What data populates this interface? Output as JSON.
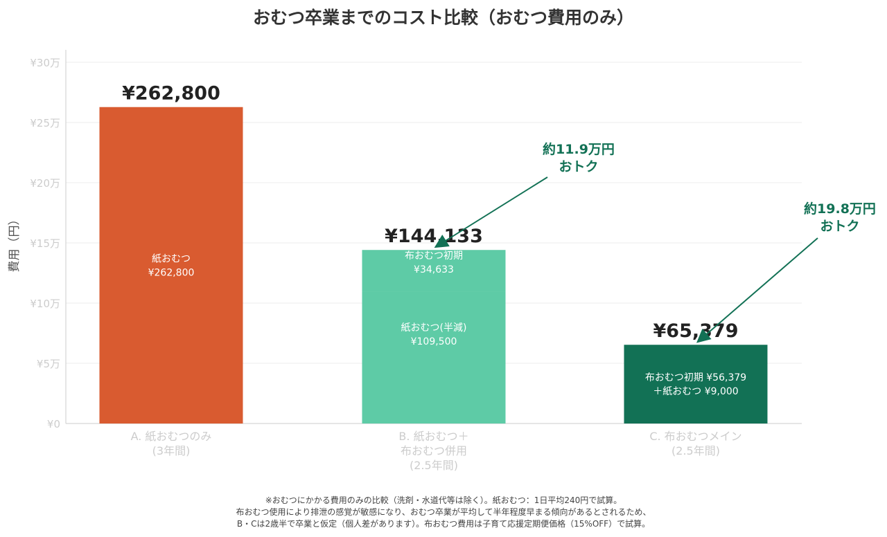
{
  "chart_data": {
    "type": "bar",
    "stacked": true,
    "title": "おむつ卒業までのコスト比較（おむつ費用のみ）",
    "ylabel": "費用（円）",
    "xlabel": "",
    "ylim": [
      0,
      300000
    ],
    "grid": true,
    "yticks": [
      0,
      50000,
      100000,
      150000,
      200000,
      250000,
      300000
    ],
    "ytick_labels": [
      "¥0",
      "¥5万",
      "¥10万",
      "¥15万",
      "¥20万",
      "¥25万",
      "¥30万"
    ],
    "categories": [
      [
        "A. 紙おむつのみ",
        "(3年間)"
      ],
      [
        "B. 紙おむつ＋",
        "布おむつ併用",
        "(2.5年間)"
      ],
      [
        "C. 布おむつメイン",
        "(2.5年間)"
      ]
    ],
    "totals": [
      262800,
      144133,
      65379
    ],
    "total_labels": [
      "¥262,800",
      "¥144,133",
      "¥65,379"
    ],
    "segments": [
      [
        {
          "value": 262800,
          "color": "#d95b30",
          "label": [
            "紙おむつ",
            "¥262,800"
          ]
        }
      ],
      [
        {
          "value": 109500,
          "color": "#5ecba6",
          "label": [
            "紙おむつ(半減)",
            "¥109,500"
          ]
        },
        {
          "value": 34633,
          "color": "#5ecba6",
          "label": [
            "布おむつ初期",
            "¥34,633"
          ]
        }
      ],
      [
        {
          "value": 65379,
          "color": "#127155",
          "label": [
            "布おむつ初期 ¥56,379",
            "＋紙おむつ ¥9,000"
          ]
        }
      ]
    ],
    "annotations": [
      {
        "text": [
          "約11.9万円",
          "おトク"
        ],
        "target_bar": 1,
        "color": "#127155"
      },
      {
        "text": [
          "約19.8万円",
          "おトク"
        ],
        "target_bar": 2,
        "color": "#127155"
      }
    ]
  },
  "footnote": [
    "※おむつにかかる費用のみの比較（洗剤・水道代等は除く）。紙おむつ：1日平均240円で試算。",
    "布おむつ使用により排泄の感覚が敏感になり、おむつ卒業が平均して半年程度早まる傾向があるとされるため、",
    "B・Cは2歳半で卒業と仮定（個人差があります）。布おむつ費用は子育て応援定期便価格（15%OFF）で試算。"
  ]
}
